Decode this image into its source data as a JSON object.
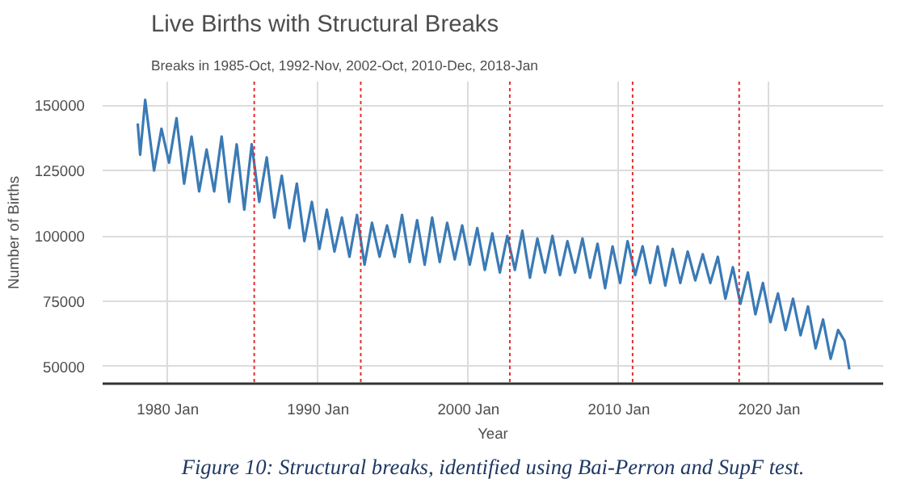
{
  "chart_data": {
    "type": "line",
    "title": "Live Births with Structural Breaks",
    "subtitle": "Breaks in 1985-Oct, 1992-Nov, 2002-Oct, 2010-Dec, 2018-Jan",
    "xlabel": "Year",
    "ylabel": "Number of Births",
    "annotations": [
      "Figure 10: Structural breaks, identified using Bai-Perron and SupF test."
    ],
    "x": [
      "1978-01",
      "1978-03",
      "1978-07",
      "1979-02",
      "1979-08",
      "1980-02",
      "1980-08",
      "1981-02",
      "1981-08",
      "1982-02",
      "1982-08",
      "1983-02",
      "1983-08",
      "1984-02",
      "1984-08",
      "1985-02",
      "1985-08",
      "1986-02",
      "1986-08",
      "1987-02",
      "1987-08",
      "1988-02",
      "1988-08",
      "1989-02",
      "1989-08",
      "1990-02",
      "1990-08",
      "1991-02",
      "1991-08",
      "1992-02",
      "1992-08",
      "1993-02",
      "1993-08",
      "1994-02",
      "1994-08",
      "1995-02",
      "1995-08",
      "1996-02",
      "1996-08",
      "1997-02",
      "1997-08",
      "1998-02",
      "1998-08",
      "1999-02",
      "1999-08",
      "2000-02",
      "2000-08",
      "2001-02",
      "2001-08",
      "2002-02",
      "2002-08",
      "2003-02",
      "2003-08",
      "2004-02",
      "2004-08",
      "2005-02",
      "2005-08",
      "2006-02",
      "2006-08",
      "2007-02",
      "2007-08",
      "2008-02",
      "2008-08",
      "2009-02",
      "2009-08",
      "2010-02",
      "2010-08",
      "2011-02",
      "2011-08",
      "2012-02",
      "2012-08",
      "2013-02",
      "2013-08",
      "2014-02",
      "2014-08",
      "2015-02",
      "2015-08",
      "2016-02",
      "2016-08",
      "2017-02",
      "2017-08",
      "2018-02",
      "2018-08",
      "2019-02",
      "2019-08",
      "2020-02",
      "2020-08",
      "2021-02",
      "2021-08",
      "2022-02",
      "2022-08",
      "2023-02",
      "2023-08",
      "2024-02",
      "2024-08",
      "2025-01",
      "2025-05"
    ],
    "series": [
      {
        "color": "#3a7ab5",
        "values": [
          143000,
          131000,
          152000,
          125000,
          141000,
          128000,
          145000,
          120000,
          138000,
          117000,
          133000,
          117000,
          138000,
          113000,
          135000,
          110000,
          135000,
          113000,
          130000,
          107000,
          123000,
          103000,
          120000,
          98000,
          113000,
          95000,
          110000,
          94000,
          107000,
          92000,
          108000,
          89000,
          105000,
          92000,
          104000,
          92000,
          108000,
          90000,
          106000,
          89000,
          107000,
          90000,
          105000,
          91000,
          104000,
          89000,
          103000,
          87000,
          101000,
          86000,
          100000,
          87000,
          102000,
          84000,
          99000,
          86000,
          100000,
          85000,
          98000,
          86000,
          99000,
          84000,
          97000,
          80000,
          96000,
          82000,
          98000,
          85000,
          96000,
          82000,
          96000,
          81000,
          95000,
          82000,
          94000,
          83000,
          93000,
          82000,
          92000,
          76000,
          88000,
          74000,
          86000,
          70000,
          82000,
          67000,
          78000,
          64000,
          76000,
          62000,
          73000,
          57000,
          68000,
          53000,
          64000,
          60000,
          49000
        ]
      }
    ],
    "xlim": [
      "1975-09",
      "2027-08"
    ],
    "xticks": [
      {
        "value": "1980-01",
        "label": "1980 Jan"
      },
      {
        "value": "1990-01",
        "label": "1990 Jan"
      },
      {
        "value": "2000-01",
        "label": "2000 Jan"
      },
      {
        "value": "2010-01",
        "label": "2010 Jan"
      },
      {
        "value": "2020-01",
        "label": "2020 Jan"
      }
    ],
    "ylim": [
      43500,
      159000
    ],
    "yticks": [
      50000,
      75000,
      100000,
      125000,
      150000
    ],
    "ref_lines": [
      {
        "axis": "x",
        "value": "1985-10",
        "color": "#e03030",
        "line_style": "dotted"
      },
      {
        "axis": "x",
        "value": "1992-11",
        "color": "#e03030",
        "line_style": "dotted"
      },
      {
        "axis": "x",
        "value": "2002-10",
        "color": "#e03030",
        "line_style": "dotted"
      },
      {
        "axis": "x",
        "value": "2010-12",
        "color": "#e03030",
        "line_style": "dotted"
      },
      {
        "axis": "x",
        "value": "2018-01",
        "color": "#e03030",
        "line_style": "dotted"
      }
    ],
    "grid": true,
    "marker": "none",
    "line_style": "solid"
  }
}
